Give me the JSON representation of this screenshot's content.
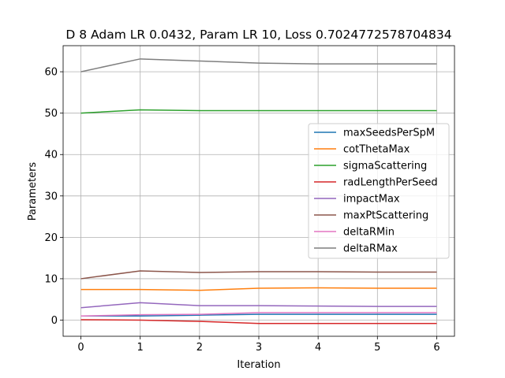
{
  "chart_data": {
    "type": "line",
    "title": "D 8 Adam LR 0.0432, Param LR 10, Loss 0.7024772578704834",
    "xlabel": "Iteration",
    "ylabel": "Parameters",
    "x": [
      0,
      1,
      2,
      3,
      4,
      5,
      6
    ],
    "xticks": [
      "0",
      "1",
      "2",
      "3",
      "4",
      "5",
      "6"
    ],
    "yticks": [
      "0",
      "10",
      "20",
      "30",
      "40",
      "50",
      "60"
    ],
    "xlim": [
      -0.3,
      6.3
    ],
    "ylim": [
      -3.9,
      66.3
    ],
    "grid": true,
    "legend_position": "center-right",
    "series": [
      {
        "name": "maxSeedsPerSpM",
        "color": "#1f77b4",
        "values": [
          1.0,
          1.0,
          1.2,
          1.4,
          1.4,
          1.4,
          1.4
        ]
      },
      {
        "name": "cotThetaMax",
        "color": "#ff7f0e",
        "values": [
          7.4,
          7.4,
          7.2,
          7.7,
          7.8,
          7.7,
          7.7
        ]
      },
      {
        "name": "sigmaScattering",
        "color": "#2ca02c",
        "values": [
          50.0,
          50.8,
          50.6,
          50.6,
          50.6,
          50.6,
          50.6
        ]
      },
      {
        "name": "radLengthPerSeed",
        "color": "#d62728",
        "values": [
          0.1,
          0.0,
          -0.3,
          -0.8,
          -0.8,
          -0.8,
          -0.8
        ]
      },
      {
        "name": "impactMax",
        "color": "#9467bd",
        "values": [
          3.0,
          4.2,
          3.5,
          3.5,
          3.4,
          3.3,
          3.3
        ]
      },
      {
        "name": "maxPtScattering",
        "color": "#8c564b",
        "values": [
          10.0,
          11.9,
          11.5,
          11.7,
          11.7,
          11.6,
          11.6
        ]
      },
      {
        "name": "deltaRMin",
        "color": "#e377c2",
        "values": [
          1.0,
          1.3,
          1.4,
          1.8,
          1.8,
          1.8,
          1.8
        ]
      },
      {
        "name": "deltaRMax",
        "color": "#7f7f7f",
        "values": [
          60.0,
          63.1,
          62.6,
          62.1,
          61.9,
          61.9,
          61.9
        ]
      }
    ]
  }
}
